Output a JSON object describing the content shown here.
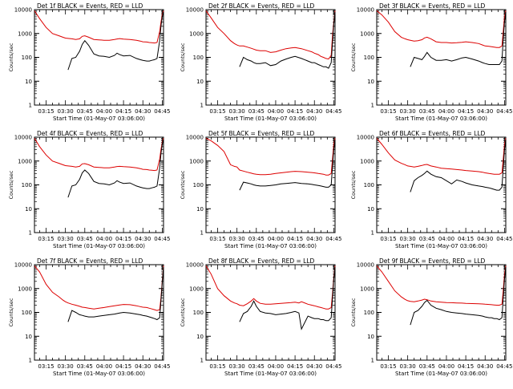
{
  "figure": {
    "x_tick_labels": [
      "03:15",
      "03:30",
      "03:45",
      "04:00",
      "04:15",
      "04:30",
      "04:45"
    ],
    "x_ticks_minutes": [
      15,
      30,
      45,
      60,
      75,
      90,
      105
    ],
    "x_range_minutes": [
      6,
      106
    ],
    "start_time_label": "Start Time (01-May-07 03:06:00)",
    "y_label": "Counts/sec",
    "y_tick_labels": [
      "1",
      "10",
      "100",
      "1000",
      "10000"
    ],
    "y_range": [
      1,
      10000
    ],
    "y_scale": "log",
    "black_color": "#000000",
    "red_color": "#dd0000"
  },
  "chart_data": [
    {
      "type": "line",
      "title": "Det 1f BLACK = Events, RED = LLD",
      "x": [
        6,
        10,
        15,
        20,
        25,
        28,
        30,
        32,
        35,
        38,
        41,
        43,
        45,
        48,
        52,
        56,
        60,
        64,
        68,
        70,
        72,
        75,
        80,
        85,
        88,
        90,
        93,
        95,
        97,
        99,
        101,
        103,
        104,
        105,
        106
      ],
      "series": [
        {
          "color": "red",
          "values": [
            9000,
            4200,
            1800,
            1000,
            800,
            700,
            640,
            620,
            600,
            560,
            600,
            760,
            800,
            700,
            560,
            540,
            520,
            520,
            560,
            590,
            610,
            580,
            560,
            520,
            480,
            450,
            440,
            420,
            410,
            400,
            420,
            1200,
            3000,
            6000,
            9000
          ]
        },
        {
          "color": "black",
          "values": [
            null,
            null,
            null,
            null,
            null,
            null,
            null,
            30,
            90,
            100,
            180,
            350,
            500,
            320,
            140,
            115,
            110,
            100,
            120,
            150,
            130,
            115,
            120,
            90,
            80,
            75,
            70,
            70,
            75,
            80,
            90,
            500,
            2000,
            5000,
            8000
          ]
        }
      ]
    },
    {
      "type": "line",
      "title": "Det 2f BLACK = Events, RED = LLD",
      "x": [
        6,
        10,
        15,
        20,
        25,
        28,
        30,
        32,
        35,
        38,
        41,
        43,
        45,
        48,
        52,
        56,
        60,
        64,
        68,
        72,
        75,
        80,
        85,
        88,
        90,
        93,
        95,
        97,
        99,
        101,
        103,
        104,
        105,
        106
      ],
      "series": [
        {
          "color": "red",
          "values": [
            9000,
            4500,
            1800,
            1000,
            500,
            380,
            330,
            300,
            300,
            270,
            240,
            220,
            200,
            190,
            190,
            160,
            170,
            200,
            230,
            250,
            260,
            230,
            190,
            170,
            150,
            130,
            110,
            100,
            90,
            85,
            120,
            800,
            3000,
            9000
          ]
        },
        {
          "color": "black",
          "values": [
            null,
            null,
            null,
            null,
            null,
            null,
            null,
            40,
            100,
            80,
            70,
            60,
            55,
            55,
            60,
            45,
            50,
            70,
            85,
            100,
            110,
            90,
            70,
            60,
            60,
            50,
            45,
            40,
            40,
            35,
            60,
            400,
            2500,
            8000
          ]
        }
      ]
    },
    {
      "type": "line",
      "title": "Det 3f BLACK = Events, RED = LLD",
      "x": [
        6,
        10,
        15,
        20,
        25,
        28,
        30,
        32,
        35,
        38,
        41,
        43,
        45,
        48,
        52,
        56,
        60,
        64,
        68,
        72,
        75,
        80,
        85,
        88,
        90,
        93,
        95,
        97,
        99,
        101,
        103,
        104,
        105,
        106
      ],
      "series": [
        {
          "color": "red",
          "values": [
            9000,
            6000,
            3000,
            1200,
            700,
            600,
            550,
            520,
            480,
            500,
            550,
            650,
            700,
            600,
            450,
            420,
            420,
            400,
            410,
            430,
            450,
            420,
            380,
            330,
            300,
            290,
            280,
            270,
            260,
            260,
            300,
            1200,
            5000,
            9000
          ]
        },
        {
          "color": "black",
          "values": [
            null,
            null,
            null,
            null,
            null,
            null,
            null,
            40,
            100,
            90,
            80,
            110,
            160,
            100,
            75,
            75,
            80,
            70,
            80,
            95,
            100,
            85,
            70,
            60,
            55,
            50,
            50,
            50,
            50,
            50,
            70,
            600,
            3000,
            8000
          ]
        }
      ]
    },
    {
      "type": "line",
      "title": "Det 4f BLACK = Events, RED = LLD",
      "x": [
        6,
        10,
        15,
        20,
        25,
        28,
        30,
        32,
        35,
        38,
        41,
        43,
        45,
        48,
        52,
        56,
        60,
        64,
        68,
        70,
        72,
        75,
        80,
        85,
        88,
        90,
        93,
        95,
        97,
        99,
        101,
        103,
        104,
        105,
        106
      ],
      "series": [
        {
          "color": "red",
          "values": [
            9000,
            4000,
            1800,
            1000,
            800,
            700,
            640,
            620,
            600,
            560,
            600,
            760,
            780,
            700,
            560,
            540,
            520,
            520,
            560,
            590,
            600,
            580,
            560,
            520,
            480,
            450,
            440,
            420,
            410,
            400,
            420,
            1200,
            3000,
            6000,
            9000
          ]
        },
        {
          "color": "black",
          "values": [
            null,
            null,
            null,
            null,
            null,
            null,
            null,
            30,
            90,
            100,
            170,
            320,
            420,
            300,
            140,
            115,
            110,
            100,
            120,
            150,
            130,
            115,
            120,
            90,
            80,
            75,
            70,
            70,
            75,
            80,
            90,
            500,
            2000,
            5000,
            8000
          ]
        }
      ]
    },
    {
      "type": "line",
      "title": "Det 5f BLACK = Events, RED = LLD",
      "x": [
        6,
        10,
        15,
        20,
        25,
        28,
        30,
        32,
        35,
        38,
        41,
        43,
        45,
        48,
        52,
        56,
        60,
        64,
        68,
        72,
        75,
        80,
        85,
        88,
        90,
        93,
        95,
        97,
        99,
        101,
        103,
        104,
        105,
        106
      ],
      "series": [
        {
          "color": "red",
          "values": [
            9000,
            7000,
            4500,
            2500,
            700,
            600,
            560,
            420,
            380,
            340,
            310,
            290,
            280,
            270,
            270,
            280,
            300,
            320,
            340,
            360,
            370,
            360,
            340,
            330,
            320,
            300,
            290,
            280,
            260,
            260,
            300,
            1200,
            5000,
            9000
          ]
        },
        {
          "color": "black",
          "values": [
            null,
            null,
            null,
            null,
            null,
            null,
            null,
            60,
            130,
            120,
            110,
            100,
            95,
            90,
            90,
            95,
            100,
            110,
            115,
            120,
            125,
            115,
            110,
            105,
            100,
            95,
            90,
            85,
            80,
            80,
            100,
            600,
            3000,
            8000
          ]
        }
      ]
    },
    {
      "type": "line",
      "title": "Det 6f BLACK = Events, RED = LLD",
      "x": [
        6,
        10,
        15,
        20,
        25,
        28,
        30,
        32,
        35,
        38,
        41,
        43,
        45,
        48,
        52,
        56,
        60,
        64,
        68,
        72,
        75,
        80,
        85,
        88,
        90,
        93,
        95,
        97,
        99,
        101,
        103,
        104,
        105,
        106
      ],
      "series": [
        {
          "color": "red",
          "values": [
            9000,
            5000,
            2200,
            1100,
            800,
            700,
            620,
            600,
            560,
            600,
            650,
            700,
            720,
            620,
            560,
            500,
            480,
            460,
            440,
            420,
            400,
            380,
            360,
            340,
            320,
            300,
            290,
            280,
            280,
            280,
            320,
            1200,
            5000,
            9000
          ]
        },
        {
          "color": "black",
          "values": [
            null,
            null,
            null,
            null,
            null,
            null,
            null,
            50,
            150,
            200,
            250,
            300,
            380,
            280,
            220,
            200,
            150,
            110,
            160,
            140,
            120,
            100,
            90,
            85,
            80,
            75,
            70,
            65,
            60,
            60,
            80,
            500,
            3000,
            8000
          ]
        }
      ]
    },
    {
      "type": "line",
      "title": "Det 7f BLACK = Events, RED = LLD",
      "x": [
        6,
        10,
        15,
        20,
        25,
        28,
        30,
        32,
        35,
        38,
        41,
        43,
        45,
        48,
        52,
        56,
        60,
        64,
        68,
        72,
        75,
        80,
        85,
        88,
        90,
        93,
        95,
        97,
        99,
        101,
        103,
        104,
        105,
        106
      ],
      "series": [
        {
          "color": "red",
          "values": [
            9000,
            5000,
            1500,
            700,
            450,
            330,
            280,
            250,
            220,
            200,
            180,
            165,
            160,
            150,
            140,
            150,
            160,
            175,
            190,
            205,
            215,
            210,
            190,
            175,
            165,
            160,
            150,
            140,
            130,
            120,
            130,
            400,
            2000,
            9000
          ]
        },
        {
          "color": "black",
          "values": [
            null,
            null,
            null,
            null,
            null,
            null,
            null,
            40,
            120,
            100,
            80,
            75,
            70,
            65,
            65,
            70,
            75,
            80,
            85,
            95,
            100,
            95,
            85,
            80,
            75,
            70,
            65,
            60,
            55,
            50,
            60,
            300,
            1800,
            8000
          ]
        }
      ]
    },
    {
      "type": "line",
      "title": "Det 8f BLACK = Events, RED = LLD",
      "x": [
        6,
        10,
        15,
        20,
        25,
        28,
        30,
        32,
        35,
        38,
        41,
        43,
        45,
        48,
        52,
        56,
        60,
        64,
        68,
        72,
        75,
        78,
        80,
        85,
        88,
        90,
        93,
        95,
        97,
        99,
        101,
        103,
        104,
        105,
        106
      ],
      "series": [
        {
          "color": "red",
          "values": [
            9000,
            4000,
            1000,
            500,
            300,
            250,
            230,
            200,
            190,
            230,
            300,
            380,
            300,
            240,
            220,
            220,
            230,
            240,
            250,
            260,
            270,
            250,
            280,
            220,
            200,
            190,
            170,
            160,
            150,
            140,
            140,
            160,
            600,
            3000,
            9000
          ]
        },
        {
          "color": "black",
          "values": [
            null,
            null,
            null,
            null,
            null,
            null,
            null,
            40,
            90,
            110,
            180,
            300,
            180,
            110,
            95,
            90,
            80,
            85,
            90,
            100,
            110,
            95,
            20,
            70,
            60,
            55,
            55,
            50,
            50,
            45,
            45,
            60,
            400,
            2500,
            8000
          ]
        }
      ]
    },
    {
      "type": "line",
      "title": "Det 9f BLACK = Events, RED = LLD",
      "x": [
        6,
        10,
        15,
        20,
        25,
        28,
        30,
        32,
        35,
        38,
        41,
        43,
        45,
        48,
        52,
        56,
        60,
        64,
        68,
        72,
        75,
        80,
        85,
        88,
        90,
        93,
        95,
        97,
        99,
        101,
        103,
        104,
        105,
        106
      ],
      "series": [
        {
          "color": "red",
          "values": [
            9000,
            5000,
            2000,
            800,
            450,
            350,
            310,
            290,
            280,
            300,
            330,
            360,
            340,
            300,
            280,
            270,
            260,
            255,
            250,
            245,
            240,
            235,
            230,
            225,
            220,
            215,
            210,
            205,
            200,
            200,
            220,
            800,
            4000,
            9000
          ]
        },
        {
          "color": "black",
          "values": [
            null,
            null,
            null,
            null,
            null,
            null,
            null,
            30,
            100,
            120,
            180,
            260,
            320,
            200,
            150,
            130,
            110,
            100,
            95,
            90,
            85,
            80,
            75,
            70,
            65,
            60,
            60,
            55,
            55,
            50,
            60,
            400,
            2500,
            8000
          ]
        }
      ]
    }
  ]
}
